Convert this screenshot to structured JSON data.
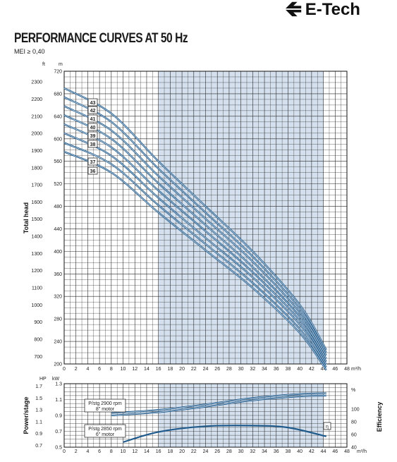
{
  "brand": {
    "name": "E-Tech",
    "color": "#111111"
  },
  "header": {
    "title": "PERFORMANCE CURVES AT 50 Hz",
    "subtitle": "MEI ≥ 0,40"
  },
  "colors": {
    "curve": "#1f5a8c",
    "grid": "#2a2a2a",
    "shade": "#d4e0ee"
  },
  "chart_data": [
    {
      "type": "line",
      "title": "PERFORMANCE CURVES AT 50 Hz",
      "xlabel": "",
      "x_unit": "m³/h",
      "ylabel": "Total head",
      "y_unit_left": "m",
      "y_unit_far_left": "ft",
      "xlim": [
        0,
        48
      ],
      "ylim": [
        200,
        720
      ],
      "x_ticks": [
        0,
        2,
        4,
        6,
        8,
        10,
        12,
        14,
        16,
        18,
        20,
        22,
        24,
        26,
        28,
        30,
        32,
        34,
        36,
        38,
        40,
        42,
        44,
        46,
        48
      ],
      "y_ticks_m": [
        200,
        240,
        280,
        320,
        360,
        400,
        440,
        480,
        520,
        560,
        600,
        640,
        680,
        720
      ],
      "y_ticks_ft": [
        700,
        800,
        900,
        1000,
        1100,
        1200,
        1300,
        1400,
        1500,
        1600,
        1700,
        1800,
        1900,
        2000,
        2100,
        2200,
        2300
      ],
      "grid": true,
      "shaded_range_x": [
        16,
        44
      ],
      "x": [
        0,
        8,
        16,
        24,
        32,
        40,
        44.5
      ],
      "series": [
        {
          "name": "43",
          "values": [
            690,
            645,
            560,
            480,
            400,
            305,
            225
          ]
        },
        {
          "name": "42",
          "values": [
            674,
            630,
            547,
            469,
            391,
            298,
            220
          ]
        },
        {
          "name": "41",
          "values": [
            658,
            615,
            534,
            458,
            382,
            291,
            215
          ]
        },
        {
          "name": "40",
          "values": [
            642,
            600,
            521,
            447,
            372,
            284,
            209
          ]
        },
        {
          "name": "39",
          "values": [
            626,
            585,
            508,
            436,
            363,
            277,
            204
          ]
        },
        {
          "name": "38",
          "values": [
            610,
            570,
            495,
            424,
            354,
            270,
            199
          ]
        },
        {
          "name": "37",
          "values": [
            593,
            555,
            482,
            413,
            344,
            262,
            194
          ]
        },
        {
          "name": "36",
          "values": [
            577,
            540,
            469,
            402,
            335,
            255,
            189
          ]
        }
      ]
    },
    {
      "type": "line",
      "title": "",
      "ylabel": "Power/stage",
      "y2label": "Efficiency",
      "x_unit": "m³/h",
      "y_unit_left": "kW",
      "y_unit_far_left": "HP",
      "y2_unit": "%",
      "xlim": [
        0,
        48
      ],
      "ylim": [
        0.5,
        1.3
      ],
      "y2lim": [
        40,
        140
      ],
      "y_ticks_kw": [
        0.5,
        0.7,
        0.9,
        1.1,
        1.3
      ],
      "y_ticks_hp": [
        0.7,
        0.9,
        1.1,
        1.3,
        1.5,
        1.7
      ],
      "y2_ticks": [
        40,
        60,
        80,
        100
      ],
      "grid": true,
      "x": [
        8,
        16,
        24,
        32,
        40,
        44.5
      ],
      "series": [
        {
          "name": "P/stg 2900 rpm 8\" motor",
          "values": [
            0.93,
            0.97,
            1.04,
            1.12,
            1.17,
            1.18
          ]
        },
        {
          "name": "P/stg 2850 rpm 6\" motor",
          "values": [
            0.9,
            0.94,
            1.01,
            1.09,
            1.14,
            1.15
          ]
        }
      ],
      "efficiency": {
        "name": "η",
        "x": [
          10,
          16,
          24,
          32,
          38,
          44.5
        ],
        "values": [
          48,
          64,
          73,
          74,
          71,
          57
        ]
      }
    }
  ],
  "labels": {
    "x_unit": "m³/h",
    "head_axis": "Total head",
    "power_axis": "Power/stage",
    "eff_axis": "Efficiency",
    "m": "m",
    "ft": "ft",
    "kw": "kW",
    "hp": "HP",
    "pct": "%",
    "p2900_line1": "P/stg 2900 rpm",
    "p2900_line2": "8\" motor",
    "p2850_line1": "P/stg 2850 rpm",
    "p2850_line2": "6\" motor",
    "eta": "η"
  }
}
